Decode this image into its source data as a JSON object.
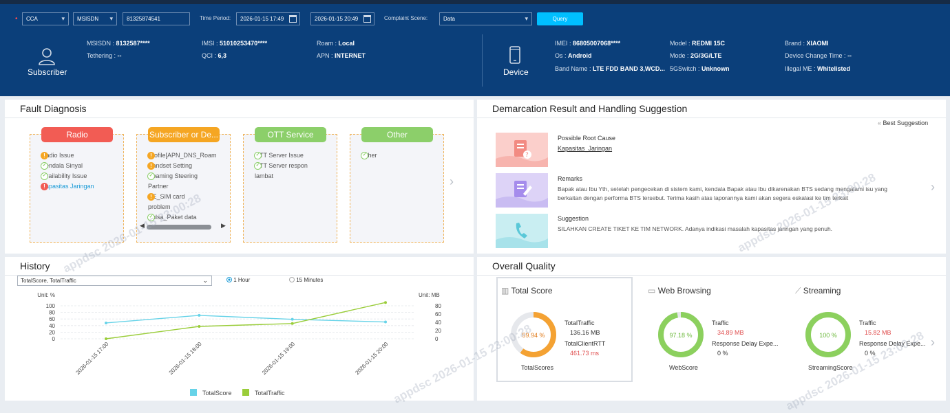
{
  "filters": {
    "region": "CCA",
    "id_type": "MSISDN",
    "number": "81325874541",
    "time_period_label": "Time Period:",
    "start_time": "2026-01-15 17:49",
    "end_time": "2026-01-15 20:49",
    "scene_label": "Complaint Scene:",
    "scene_value": "Data",
    "query_label": "Query"
  },
  "subscriber": {
    "label": "Subscriber",
    "msisdn_label": "MSISDN :",
    "msisdn": "8132587****",
    "tethering_label": "Tethering :",
    "tethering": "--",
    "imsi_label": "IMSI :",
    "imsi": "51010253470****",
    "qci_label": "QCI :",
    "qci": "6,3",
    "roam_label": "Roam :",
    "roam": "Local",
    "apn_label": "APN :",
    "apn": "INTERNET"
  },
  "device": {
    "label": "Device",
    "imei_label": "IMEI :",
    "imei": "86805007068****",
    "os_label": "Os :",
    "os": "Android",
    "band_label": "Band Name :",
    "band": "LTE FDD BAND 3,WCD...",
    "model_label": "Model :",
    "model": "REDMI 15C",
    "mode_label": "Mode :",
    "mode": "2G/3G/LTE",
    "switch_label": "5GSwitch :",
    "switch": "Unknown",
    "brand_label": "Brand :",
    "brand": "XIAOMI",
    "change_label": "Device Change Time :",
    "change": "--",
    "illegal_label": "Illegal ME :",
    "illegal": "Whitelisted"
  },
  "fault": {
    "title": "Fault Diagnosis",
    "cards": [
      {
        "name": "Radio",
        "color": "#f25c54",
        "items": [
          "Radio Issue",
          "Kendala Sinyal",
          "Availability Issue",
          "Kapasitas Jaringan"
        ]
      },
      {
        "name": "Subscriber or De...",
        "color": "#f5a623",
        "items": [
          "Profile[APN_DNS_Roam",
          "Handset Setting",
          "Roaming Steering",
          "Partner",
          "UE_SIM card",
          "problem",
          "Pulsa_Paket data"
        ]
      },
      {
        "name": "OTT Service",
        "color": "#8ccf6a",
        "items": [
          "OTT Server Issue",
          "OTT Server respon",
          "lambat"
        ]
      },
      {
        "name": "Other",
        "color": "#8ccf6a",
        "items": [
          "Other"
        ]
      }
    ]
  },
  "demarcation": {
    "title": "Demarcation Result and Handling Suggestion",
    "best": "Best Suggestion",
    "root_label": "Possible Root Cause",
    "root_value": "Kapasitas_Jaringan",
    "remarks_label": "Remarks",
    "remarks_line1": "Bapak atau Ibu Yth, setelah pengecekan di sistem kami, kendala Bapak atau Ibu dikarenakan BTS sedang mengalami isu yang",
    "remarks_line2": "berkaitan dengan performa BTS tersebut. Terima kasih atas laporannya kami akan segera eskalasi ke tim terkait",
    "suggestion_label": "Suggestion",
    "suggestion_value": "SILAHKAN CREATE TIKET KE TIM NETWORK. Adanya indikasi masalah kapasitas jaringan yang penuh."
  },
  "history": {
    "title": "History",
    "select_value": "TotalScore, TotalTraffic",
    "radio_1h": "1 Hour",
    "radio_15m": "15 Minutes",
    "unit_left": "Unit: %",
    "unit_right": "Unit: MB"
  },
  "chart_data": {
    "type": "line",
    "categories": [
      "2026-01-15 17:00",
      "2026-01-15 18:00",
      "2026-01-15 19:00",
      "2026-01-15 20:00"
    ],
    "series": [
      {
        "name": "TotalScore",
        "axis": "left",
        "color": "#67d3e8",
        "values": [
          48,
          71,
          59,
          51
        ]
      },
      {
        "name": "TotalTraffic",
        "axis": "right",
        "color": "#9acd3a",
        "values": [
          0,
          30,
          37,
          88
        ]
      }
    ],
    "y_left": {
      "label": "Unit: %",
      "ticks": [
        0,
        20,
        40,
        60,
        80,
        100
      ],
      "range": [
        0,
        100
      ]
    },
    "y_right": {
      "label": "Unit: MB",
      "ticks": [
        0,
        20,
        40,
        60,
        80
      ],
      "range": [
        0,
        80
      ]
    },
    "legend": "bottom"
  },
  "quality": {
    "title": "Overall Quality",
    "total": {
      "label": "Total Score",
      "pct": "59.94 %",
      "fraction": 0.5994,
      "ring_label": "TotalScores",
      "traffic_label": "TotalTraffic",
      "traffic": "136.16 MB",
      "rtt_label": "TotalClientRTT",
      "rtt": "461.73 ms"
    },
    "web": {
      "label": "Web Browsing",
      "pct": "97.18 %",
      "fraction": 0.9718,
      "ring_label": "WebScore",
      "traffic_label": "Traffic",
      "traffic": "34.89 MB",
      "delay_label": "Response Delay Expe...",
      "delay": "0 %"
    },
    "stream": {
      "label": "Streaming",
      "pct": "100 %",
      "fraction": 1.0,
      "ring_label": "StreamingScore",
      "traffic_label": "Traffic",
      "traffic": "15.82 MB",
      "delay_label": "Response Delay Expe...",
      "delay": "0 %"
    }
  },
  "watermark": "appdsc 2026-01-15 23:00:28"
}
